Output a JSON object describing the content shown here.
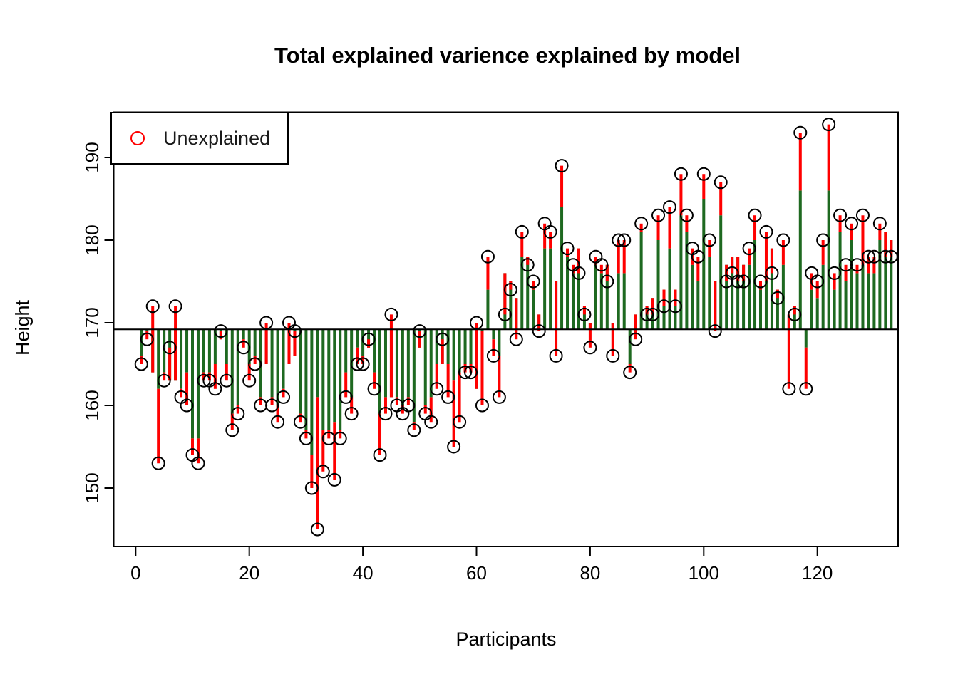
{
  "figure": {
    "title": "Total explained varience explained by model"
  },
  "axes": {
    "x_label": "Participants",
    "y_label": "Height",
    "x_ticks": [
      0,
      20,
      40,
      60,
      80,
      100,
      120
    ],
    "y_ticks": [
      150,
      160,
      170,
      180,
      190
    ]
  },
  "legend": {
    "marker_symbol": "o",
    "marker_color": "#FF0000",
    "label": "Unexplained",
    "position": "top-left"
  },
  "colors": {
    "explained_stem": "#1E6920",
    "unexplained_stem": "#FF0000",
    "point_outline": "#000000",
    "mean_line": "#000000",
    "plot_border": "#000000",
    "background": "#FFFFFF"
  },
  "chart_data": {
    "type": "scatter",
    "subtype": "stem-residual-plot",
    "title": "Total explained varience explained by model",
    "xlabel": "Participants",
    "ylabel": "Height",
    "xlim": [
      -4,
      134
    ],
    "ylim": [
      143,
      195.5
    ],
    "grid": false,
    "legend_position": "top-left",
    "mean_line_value": 169.2,
    "n_participants": 133,
    "x_start": 1,
    "series": [
      {
        "name": "observed_height",
        "marker": "open-circle",
        "values": [
          165,
          168,
          172,
          153,
          163,
          167,
          172,
          161,
          160,
          154,
          153,
          163,
          163,
          162,
          169,
          163,
          157,
          159,
          167,
          163,
          165,
          160,
          170,
          160,
          158,
          161,
          170,
          169,
          158,
          156,
          150,
          145,
          152,
          156,
          151,
          156,
          161,
          159,
          165,
          165,
          168,
          162,
          154,
          159,
          171,
          160,
          159,
          160,
          157,
          169,
          159,
          158,
          162,
          168,
          161,
          155,
          158,
          164,
          164,
          170,
          160,
          178,
          166,
          161,
          171,
          174,
          168,
          181,
          177,
          175,
          169,
          182,
          181,
          166,
          189,
          179,
          177,
          176,
          171,
          167,
          178,
          177,
          175,
          166,
          180,
          180,
          164,
          168,
          182,
          171,
          171,
          183,
          172,
          184,
          172,
          188,
          183,
          179,
          178,
          188,
          180,
          169,
          187,
          175,
          176,
          175,
          175,
          179,
          183,
          175,
          181,
          176,
          173,
          180,
          162,
          171,
          193,
          162,
          176,
          175,
          180,
          194,
          176,
          183,
          177,
          182,
          177,
          183,
          178,
          178,
          182,
          178,
          178
        ]
      },
      {
        "name": "model_fitted_height",
        "marker": "none",
        "values": [
          166,
          169,
          164,
          162,
          164,
          163,
          163,
          162,
          164,
          156,
          156,
          164,
          164,
          165,
          168,
          165,
          159,
          160,
          168,
          165,
          166,
          161,
          165,
          161,
          160,
          162,
          165,
          166,
          159,
          157,
          154,
          161,
          157,
          157,
          158,
          157,
          164,
          161,
          167,
          166,
          167,
          164,
          159,
          161,
          161,
          161,
          160,
          161,
          158,
          167,
          160,
          161,
          165,
          165,
          165,
          163,
          164,
          165,
          165,
          162,
          169,
          174,
          168,
          166,
          176,
          175,
          173,
          178,
          178,
          174,
          171,
          179,
          179,
          175,
          184,
          178,
          176,
          179,
          172,
          170,
          177,
          176,
          177,
          170,
          176,
          176,
          165,
          171,
          181,
          172,
          173,
          180,
          174,
          179,
          174,
          183,
          181,
          177,
          175,
          185,
          178,
          175,
          183,
          177,
          178,
          178,
          177,
          177,
          180,
          174,
          175,
          179,
          174,
          177,
          171,
          172,
          186,
          167,
          174,
          173,
          177,
          186,
          174,
          181,
          175,
          180,
          176,
          177,
          176,
          176,
          180,
          181,
          180
        ]
      }
    ]
  }
}
